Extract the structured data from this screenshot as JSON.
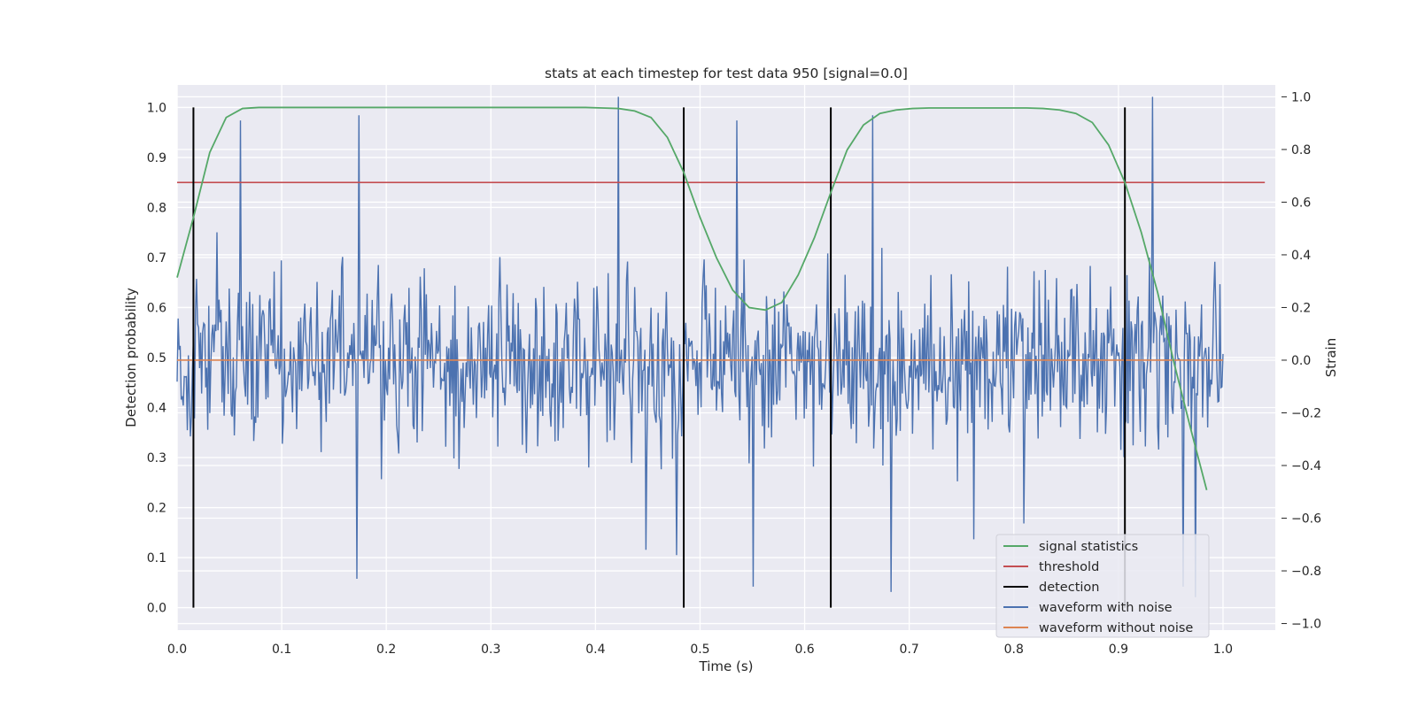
{
  "chart_data": {
    "type": "line",
    "title": "stats at each timestep for test data 950 [signal=0.0]",
    "xlabel": "Time (s)",
    "ylabel_left": "Detection probability",
    "ylabel_right": "Strain",
    "xlim": [
      0.0,
      1.05
    ],
    "ylim_left": [
      -0.045,
      1.045
    ],
    "ylim_right": [
      -1.025,
      1.045
    ],
    "xticks": [
      0.0,
      0.1,
      0.2,
      0.3,
      0.4,
      0.5,
      0.6,
      0.7,
      0.8,
      0.9,
      1.0
    ],
    "xtick_labels": [
      "0.0",
      "0.1",
      "0.2",
      "0.3",
      "0.4",
      "0.5",
      "0.6",
      "0.7",
      "0.8",
      "0.9",
      "1.0"
    ],
    "yticks_left": [
      0.0,
      0.1,
      0.2,
      0.3,
      0.4,
      0.5,
      0.6,
      0.7,
      0.8,
      0.9,
      1.0
    ],
    "ytick_labels_left": [
      "0.0",
      "0.1",
      "0.2",
      "0.3",
      "0.4",
      "0.5",
      "0.6",
      "0.7",
      "0.8",
      "0.9",
      "1.0"
    ],
    "yticks_right": [
      -1.0,
      -0.8,
      -0.6,
      -0.4,
      -0.2,
      0.0,
      0.2,
      0.4,
      0.6,
      0.8,
      1.0
    ],
    "ytick_labels_right": [
      "−1.0",
      "−0.8",
      "−0.6",
      "−0.4",
      "−0.2",
      "0.0",
      "0.2",
      "0.4",
      "0.6",
      "0.8",
      "1.0"
    ],
    "grid": true,
    "legend_position": "lower-right",
    "series": [
      {
        "name": "signal statistics",
        "axis": "left",
        "color": "#55a868",
        "x": [
          0.0,
          0.0156,
          0.0312,
          0.0469,
          0.0625,
          0.0781,
          0.0938,
          0.1094,
          0.125,
          0.1406,
          0.1562,
          0.1719,
          0.1875,
          0.2031,
          0.2188,
          0.2344,
          0.25,
          0.2656,
          0.2812,
          0.2969,
          0.3125,
          0.3281,
          0.3438,
          0.3594,
          0.375,
          0.3906,
          0.4062,
          0.4219,
          0.4375,
          0.4531,
          0.4688,
          0.4844,
          0.5,
          0.5156,
          0.5312,
          0.5469,
          0.5625,
          0.5781,
          0.5938,
          0.6094,
          0.625,
          0.6406,
          0.6562,
          0.6719,
          0.6875,
          0.7031,
          0.7188,
          0.7344,
          0.75,
          0.7656,
          0.7812,
          0.7969,
          0.8125,
          0.8281,
          0.8438,
          0.8594,
          0.875,
          0.8906,
          0.9062,
          0.9219,
          0.9375,
          0.9531,
          0.9688,
          0.9844
        ],
        "values": [
          0.66,
          0.78,
          0.91,
          0.98,
          0.998,
          1.0,
          1.0,
          1.0,
          1.0,
          1.0,
          1.0,
          1.0,
          1.0,
          1.0,
          1.0,
          1.0,
          1.0,
          1.0,
          1.0,
          1.0,
          1.0,
          1.0,
          1.0,
          1.0,
          1.0,
          1.0,
          0.999,
          0.998,
          0.993,
          0.98,
          0.94,
          0.87,
          0.78,
          0.7,
          0.635,
          0.6,
          0.595,
          0.61,
          0.665,
          0.74,
          0.83,
          0.915,
          0.965,
          0.988,
          0.995,
          0.998,
          0.999,
          0.999,
          0.999,
          0.999,
          0.999,
          0.999,
          0.999,
          0.998,
          0.995,
          0.988,
          0.97,
          0.925,
          0.85,
          0.75,
          0.63,
          0.49,
          0.36,
          0.235
        ]
      },
      {
        "name": "threshold",
        "axis": "left",
        "color": "#c44e52",
        "x": [
          0.0,
          1.04
        ],
        "values": [
          0.85,
          0.85
        ]
      },
      {
        "name": "detection",
        "axis": "left",
        "color": "#000000",
        "x": [
          0.0156,
          0.4844,
          0.625,
          0.9062
        ],
        "ymin": 0.0,
        "ymax": 1.0
      },
      {
        "name": "waveform with noise",
        "axis": "right",
        "color": "#4c72b0",
        "sample_rate_hz": 1024,
        "n_samples": 1025,
        "values": "noise-like series spanning roughly -0.85 to 1.0 strain (individual samples not legible)"
      },
      {
        "name": "waveform without noise",
        "axis": "right",
        "color": "#dd8452",
        "x": [
          0.0,
          1.0
        ],
        "values": [
          0.0,
          0.0
        ]
      }
    ],
    "notable_spikes": [
      {
        "x": 0.061,
        "y": 0.91
      },
      {
        "x": 0.174,
        "y": 0.93
      },
      {
        "x": 0.422,
        "y": 1.0
      },
      {
        "x": 0.535,
        "y": 0.91
      },
      {
        "x": 0.665,
        "y": 0.93
      },
      {
        "x": 0.933,
        "y": 1.0
      },
      {
        "x": 0.172,
        "y": -0.83
      },
      {
        "x": 0.551,
        "y": -0.86
      },
      {
        "x": 0.683,
        "y": -0.88
      },
      {
        "x": 0.974,
        "y": -0.9
      },
      {
        "x": 0.962,
        "y": -0.86
      },
      {
        "x": 0.448,
        "y": -0.72
      },
      {
        "x": 0.478,
        "y": -0.74
      },
      {
        "x": 0.762,
        "y": -0.68
      },
      {
        "x": 0.81,
        "y": -0.62
      }
    ]
  }
}
